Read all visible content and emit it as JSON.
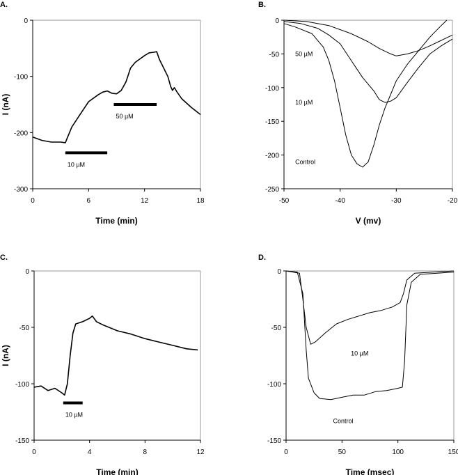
{
  "chart_data": [
    {
      "panel": "A.",
      "type": "line",
      "xlabel": "Time (min)",
      "ylabel": "I (nA)",
      "xlim": [
        0,
        18
      ],
      "ylim": [
        -300,
        0
      ],
      "xticks": [
        0,
        6,
        12,
        18
      ],
      "yticks": [
        0,
        -100,
        -200,
        -300
      ],
      "series": [
        {
          "name": "trace",
          "points": [
            [
              0,
              -208
            ],
            [
              1,
              -214
            ],
            [
              2,
              -217
            ],
            [
              3,
              -217
            ],
            [
              3.5,
              -218
            ],
            [
              3.7,
              -210
            ],
            [
              4.2,
              -190
            ],
            [
              5,
              -170
            ],
            [
              6,
              -145
            ],
            [
              7,
              -133
            ],
            [
              7.5,
              -128
            ],
            [
              8,
              -126
            ],
            [
              8.5,
              -130
            ],
            [
              9,
              -131
            ],
            [
              9.5,
              -125
            ],
            [
              10,
              -110
            ],
            [
              10.5,
              -85
            ],
            [
              11,
              -75
            ],
            [
              12,
              -63
            ],
            [
              12.5,
              -58
            ],
            [
              13,
              -57
            ],
            [
              13.3,
              -56
            ],
            [
              13.6,
              -70
            ],
            [
              14.2,
              -90
            ],
            [
              14.5,
              -100
            ],
            [
              14.8,
              -118
            ],
            [
              15,
              -125
            ],
            [
              15.2,
              -120
            ],
            [
              15.5,
              -128
            ],
            [
              16,
              -140
            ],
            [
              17,
              -155
            ],
            [
              18,
              -168
            ]
          ]
        }
      ],
      "bars": [
        {
          "label": "10 µM",
          "x": [
            3.5,
            8
          ],
          "y": -236
        },
        {
          "label": "50 µM",
          "x": [
            8.7,
            13.3
          ],
          "y": -150
        }
      ],
      "annotations": []
    },
    {
      "panel": "B.",
      "type": "line",
      "xlabel": "V (mv)",
      "ylabel": "",
      "xlim": [
        -50,
        -20
      ],
      "ylim": [
        -250,
        0
      ],
      "xticks": [
        -50,
        -40,
        -30,
        -20
      ],
      "yticks": [
        0,
        -50,
        -100,
        -150,
        -200,
        -250
      ],
      "series": [
        {
          "name": "Control",
          "points": [
            [
              -50,
              -5
            ],
            [
              -48,
              -10
            ],
            [
              -45,
              -20
            ],
            [
              -43,
              -40
            ],
            [
              -42,
              -60
            ],
            [
              -41,
              -90
            ],
            [
              -40,
              -130
            ],
            [
              -39,
              -170
            ],
            [
              -38,
              -200
            ],
            [
              -37,
              -213
            ],
            [
              -36,
              -218
            ],
            [
              -35,
              -210
            ],
            [
              -34,
              -185
            ],
            [
              -33,
              -155
            ],
            [
              -32,
              -130
            ],
            [
              -31,
              -110
            ],
            [
              -30,
              -90
            ],
            [
              -28,
              -65
            ],
            [
              -26,
              -45
            ],
            [
              -24,
              -25
            ],
            [
              -22,
              -8
            ],
            [
              -21,
              0
            ]
          ]
        },
        {
          "name": "10 µM",
          "points": [
            [
              -50,
              -2
            ],
            [
              -47,
              -5
            ],
            [
              -44,
              -12
            ],
            [
              -42,
              -22
            ],
            [
              -40,
              -35
            ],
            [
              -38,
              -60
            ],
            [
              -36,
              -85
            ],
            [
              -34,
              -105
            ],
            [
              -33,
              -118
            ],
            [
              -32,
              -122
            ],
            [
              -31,
              -120
            ],
            [
              -30,
              -115
            ],
            [
              -28,
              -92
            ],
            [
              -26,
              -70
            ],
            [
              -24,
              -50
            ],
            [
              -22,
              -38
            ],
            [
              -20,
              -28
            ]
          ]
        },
        {
          "name": "50 µM",
          "points": [
            [
              -50,
              0
            ],
            [
              -46,
              -2
            ],
            [
              -42,
              -8
            ],
            [
              -38,
              -20
            ],
            [
              -35,
              -32
            ],
            [
              -33,
              -42
            ],
            [
              -31,
              -50
            ],
            [
              -30,
              -53
            ],
            [
              -28,
              -50
            ],
            [
              -26,
              -45
            ],
            [
              -24,
              -38
            ],
            [
              -22,
              -30
            ],
            [
              -20,
              -22
            ]
          ]
        }
      ],
      "bars": [],
      "annotations": [
        {
          "text": "50 µM",
          "x": -48,
          "y": -50
        },
        {
          "text": "10 µM",
          "x": -48,
          "y": -122
        },
        {
          "text": "Control",
          "x": -48,
          "y": -210
        }
      ]
    },
    {
      "panel": "C.",
      "type": "line",
      "xlabel": "Time (min)",
      "ylabel": "I (nA)",
      "xlim": [
        0,
        12
      ],
      "ylim": [
        -150,
        0
      ],
      "xticks": [
        0,
        4,
        8,
        12
      ],
      "yticks": [
        0,
        -50,
        -100,
        -150
      ],
      "series": [
        {
          "name": "trace",
          "points": [
            [
              0,
              -103
            ],
            [
              0.5,
              -102
            ],
            [
              1,
              -106
            ],
            [
              1.5,
              -104
            ],
            [
              2,
              -108
            ],
            [
              2.2,
              -110
            ],
            [
              2.4,
              -100
            ],
            [
              2.6,
              -75
            ],
            [
              2.8,
              -55
            ],
            [
              3,
              -47
            ],
            [
              3.5,
              -45
            ],
            [
              4,
              -42
            ],
            [
              4.2,
              -40
            ],
            [
              4.5,
              -45
            ],
            [
              5,
              -48
            ],
            [
              6,
              -53
            ],
            [
              7,
              -56
            ],
            [
              8,
              -60
            ],
            [
              9,
              -63
            ],
            [
              10,
              -66
            ],
            [
              11,
              -69
            ],
            [
              11.8,
              -70
            ]
          ]
        }
      ],
      "bars": [
        {
          "label": "10 µM",
          "x": [
            2.1,
            3.5
          ],
          "y": -117
        }
      ],
      "annotations": []
    },
    {
      "panel": "D.",
      "type": "line",
      "xlabel": "Time (msec)",
      "ylabel": "",
      "xlim": [
        0,
        150
      ],
      "ylim": [
        -150,
        0
      ],
      "xticks": [
        0,
        50,
        100,
        150
      ],
      "yticks": [
        0,
        -50,
        -100,
        -150
      ],
      "series": [
        {
          "name": "Control",
          "points": [
            [
              0,
              0
            ],
            [
              10,
              -1
            ],
            [
              15,
              -20
            ],
            [
              18,
              -70
            ],
            [
              20,
              -95
            ],
            [
              25,
              -108
            ],
            [
              30,
              -113
            ],
            [
              40,
              -114
            ],
            [
              50,
              -112
            ],
            [
              60,
              -110
            ],
            [
              70,
              -110
            ],
            [
              80,
              -107
            ],
            [
              90,
              -106
            ],
            [
              100,
              -104
            ],
            [
              104,
              -103
            ],
            [
              106,
              -80
            ],
            [
              108,
              -30
            ],
            [
              112,
              -10
            ],
            [
              120,
              -3
            ],
            [
              150,
              -1
            ]
          ]
        },
        {
          "name": "10 µM",
          "points": [
            [
              0,
              0
            ],
            [
              12,
              -2
            ],
            [
              15,
              -25
            ],
            [
              18,
              -50
            ],
            [
              22,
              -65
            ],
            [
              26,
              -63
            ],
            [
              35,
              -55
            ],
            [
              45,
              -47
            ],
            [
              55,
              -43
            ],
            [
              65,
              -40
            ],
            [
              75,
              -37
            ],
            [
              85,
              -35
            ],
            [
              95,
              -32
            ],
            [
              102,
              -28
            ],
            [
              105,
              -20
            ],
            [
              108,
              -8
            ],
            [
              115,
              -2
            ],
            [
              150,
              0
            ]
          ]
        }
      ],
      "bars": [],
      "annotations": [
        {
          "text": "10 µM",
          "x": 58,
          "y": -73
        },
        {
          "text": "Control",
          "x": 42,
          "y": -133
        }
      ]
    }
  ]
}
